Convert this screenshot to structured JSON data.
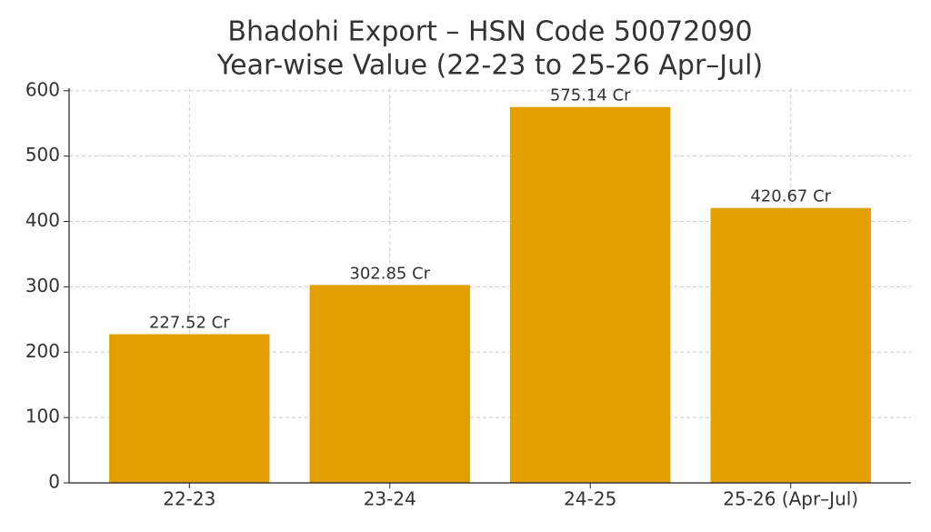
{
  "chart_data": {
    "type": "bar",
    "title": "Bhadohi Export – HSN Code 50072090",
    "subtitle": "Year-wise Value (22-23 to 25-26 Apr–Jul)",
    "categories": [
      "22-23",
      "23-24",
      "24-25",
      "25-26 (Apr–Jul)"
    ],
    "values": [
      227.52,
      302.85,
      575.14,
      420.67
    ],
    "value_labels": [
      "227.52 Cr",
      "302.85 Cr",
      "575.14 Cr",
      "420.67 Cr"
    ],
    "color": "#e39f00",
    "ylim": [
      0,
      603.9
    ],
    "yticks": [
      0,
      100,
      200,
      300,
      400,
      500,
      600
    ],
    "grid": true
  }
}
